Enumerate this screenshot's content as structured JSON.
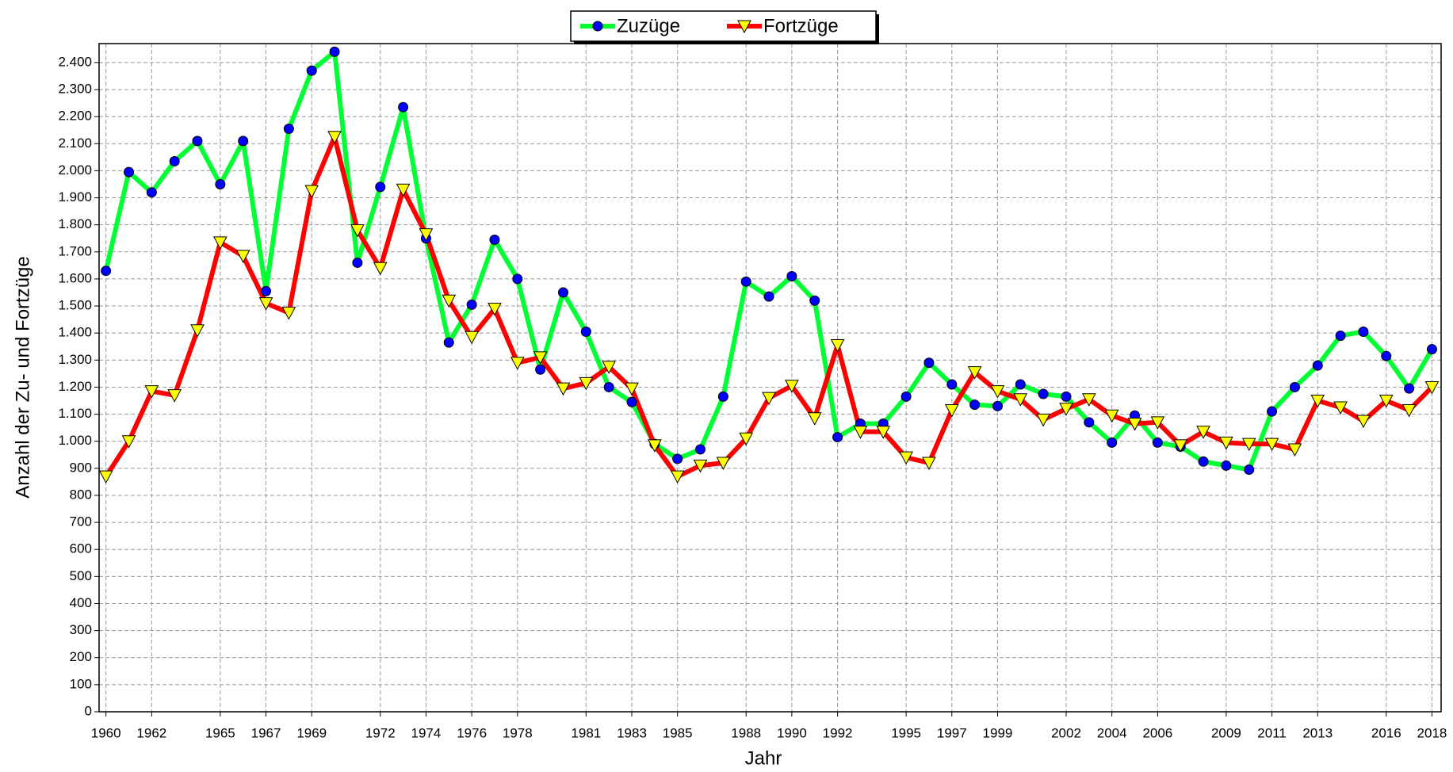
{
  "chart_data": {
    "type": "line",
    "x_label": "Jahr",
    "y_label": "Anzahl der Zu- und Fortzüge",
    "x": [
      1960,
      1961,
      1962,
      1963,
      1964,
      1965,
      1966,
      1967,
      1968,
      1969,
      1970,
      1971,
      1972,
      1973,
      1974,
      1975,
      1976,
      1977,
      1978,
      1979,
      1980,
      1981,
      1982,
      1983,
      1984,
      1985,
      1986,
      1987,
      1988,
      1989,
      1990,
      1991,
      1992,
      1993,
      1994,
      1995,
      1996,
      1997,
      1998,
      1999,
      2000,
      2001,
      2002,
      2003,
      2004,
      2005,
      2006,
      2007,
      2008,
      2009,
      2010,
      2011,
      2012,
      2013,
      2014,
      2015,
      2016,
      2017,
      2018
    ],
    "series": [
      {
        "name": "Zuzüge",
        "color": "#00ff33",
        "marker_color": "#0000ff",
        "values": [
          1630,
          1995,
          1920,
          2035,
          2110,
          1950,
          2110,
          1555,
          2155,
          2370,
          2440,
          1660,
          1940,
          2235,
          1750,
          1365,
          1505,
          1745,
          1600,
          1265,
          1550,
          1405,
          1200,
          1145,
          990,
          935,
          970,
          1165,
          1590,
          1535,
          1610,
          1520,
          1015,
          1065,
          1065,
          1165,
          1290,
          1210,
          1135,
          1130,
          1210,
          1175,
          1165,
          1070,
          995,
          1095,
          995,
          980,
          925,
          910,
          895,
          1110,
          1200,
          1280,
          1390,
          1405,
          1315,
          1195,
          1340
        ]
      },
      {
        "name": "Fortzüge",
        "color": "#ff0000",
        "marker_color": "#ffff00",
        "values": [
          870,
          1000,
          1185,
          1170,
          1410,
          1735,
          1685,
          1510,
          1475,
          1925,
          2125,
          1780,
          1640,
          1930,
          1765,
          1520,
          1385,
          1490,
          1290,
          1310,
          1195,
          1215,
          1275,
          1195,
          985,
          870,
          910,
          920,
          1010,
          1160,
          1205,
          1085,
          1355,
          1035,
          1035,
          940,
          920,
          1115,
          1255,
          1185,
          1155,
          1080,
          1120,
          1155,
          1095,
          1065,
          1070,
          985,
          1035,
          995,
          990,
          990,
          970,
          1150,
          1125,
          1075,
          1150,
          1115,
          1200
        ]
      }
    ],
    "xlim": [
      1959.7,
      2018.4
    ],
    "xticks": [
      1960,
      1962,
      1965,
      1967,
      1969,
      1972,
      1974,
      1976,
      1978,
      1981,
      1983,
      1985,
      1988,
      1990,
      1992,
      1995,
      1997,
      1999,
      2002,
      2004,
      2006,
      2009,
      2011,
      2013,
      2016,
      2018
    ],
    "ylim": [
      0,
      2470
    ],
    "yticks": [
      0,
      100,
      200,
      300,
      400,
      500,
      600,
      700,
      800,
      900,
      {
        "value": 1000,
        "label": "1.000"
      },
      {
        "value": 1100,
        "label": "1.100"
      },
      {
        "value": 1200,
        "label": "1.200"
      },
      {
        "value": 1300,
        "label": "1.300"
      },
      {
        "value": 1400,
        "label": "1.400"
      },
      {
        "value": 1500,
        "label": "1.500"
      },
      {
        "value": 1600,
        "label": "1.600"
      },
      {
        "value": 1700,
        "label": "1.700"
      },
      {
        "value": 1800,
        "label": "1.800"
      },
      {
        "value": 1900,
        "label": "1.900"
      },
      {
        "value": 2000,
        "label": "2.000"
      },
      {
        "value": 2100,
        "label": "2.100"
      },
      {
        "value": 2200,
        "label": "2.200"
      },
      {
        "value": 2300,
        "label": "2.300"
      },
      {
        "value": 2400,
        "label": "2.400"
      }
    ],
    "grid": true,
    "legend": "top"
  }
}
